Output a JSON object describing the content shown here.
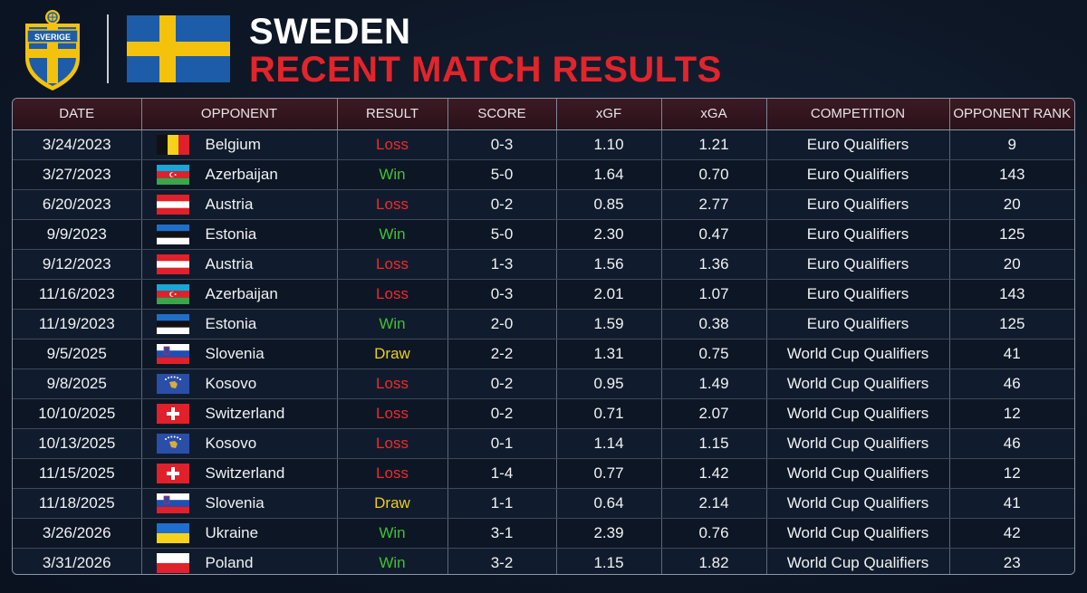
{
  "header": {
    "crest_text": "SVERIGE",
    "title_line1": "SWEDEN",
    "title_line2": "RECENT MATCH RESULTS"
  },
  "colors": {
    "sweden_blue": "#1d5ca8",
    "sweden_yellow": "#f4c20d",
    "title_red": "#e3242b",
    "loss": "#ee2b2b",
    "win": "#3fc22f",
    "draw": "#f0cd1a"
  },
  "chart_data": {
    "type": "table",
    "columns": [
      "DATE",
      "OPPONENT",
      "RESULT",
      "SCORE",
      "xGF",
      "xGA",
      "COMPETITION",
      "OPPONENT RANK"
    ],
    "rows": [
      {
        "date": "3/24/2023",
        "opponent": "Belgium",
        "flag": "belgium",
        "result": "Loss",
        "score": "0-3",
        "xgf": "1.10",
        "xga": "1.21",
        "competition": "Euro Qualifiers",
        "rank": "9"
      },
      {
        "date": "3/27/2023",
        "opponent": "Azerbaijan",
        "flag": "azerbaijan",
        "result": "Win",
        "score": "5-0",
        "xgf": "1.64",
        "xga": "0.70",
        "competition": "Euro Qualifiers",
        "rank": "143"
      },
      {
        "date": "6/20/2023",
        "opponent": "Austria",
        "flag": "austria",
        "result": "Loss",
        "score": "0-2",
        "xgf": "0.85",
        "xga": "2.77",
        "competition": "Euro Qualifiers",
        "rank": "20"
      },
      {
        "date": "9/9/2023",
        "opponent": "Estonia",
        "flag": "estonia",
        "result": "Win",
        "score": "5-0",
        "xgf": "2.30",
        "xga": "0.47",
        "competition": "Euro Qualifiers",
        "rank": "125"
      },
      {
        "date": "9/12/2023",
        "opponent": "Austria",
        "flag": "austria",
        "result": "Loss",
        "score": "1-3",
        "xgf": "1.56",
        "xga": "1.36",
        "competition": "Euro Qualifiers",
        "rank": "20"
      },
      {
        "date": "11/16/2023",
        "opponent": "Azerbaijan",
        "flag": "azerbaijan",
        "result": "Loss",
        "score": "0-3",
        "xgf": "2.01",
        "xga": "1.07",
        "competition": "Euro Qualifiers",
        "rank": "143"
      },
      {
        "date": "11/19/2023",
        "opponent": "Estonia",
        "flag": "estonia",
        "result": "Win",
        "score": "2-0",
        "xgf": "1.59",
        "xga": "0.38",
        "competition": "Euro Qualifiers",
        "rank": "125"
      },
      {
        "date": "9/5/2025",
        "opponent": "Slovenia",
        "flag": "slovenia",
        "result": "Draw",
        "score": "2-2",
        "xgf": "1.31",
        "xga": "0.75",
        "competition": "World Cup Qualifiers",
        "rank": "41"
      },
      {
        "date": "9/8/2025",
        "opponent": "Kosovo",
        "flag": "kosovo",
        "result": "Loss",
        "score": "0-2",
        "xgf": "0.95",
        "xga": "1.49",
        "competition": "World Cup Qualifiers",
        "rank": "46"
      },
      {
        "date": "10/10/2025",
        "opponent": "Switzerland",
        "flag": "switzerland",
        "result": "Loss",
        "score": "0-2",
        "xgf": "0.71",
        "xga": "2.07",
        "competition": "World Cup Qualifiers",
        "rank": "12"
      },
      {
        "date": "10/13/2025",
        "opponent": "Kosovo",
        "flag": "kosovo",
        "result": "Loss",
        "score": "0-1",
        "xgf": "1.14",
        "xga": "1.15",
        "competition": "World Cup Qualifiers",
        "rank": "46"
      },
      {
        "date": "11/15/2025",
        "opponent": "Switzerland",
        "flag": "switzerland",
        "result": "Loss",
        "score": "1-4",
        "xgf": "0.77",
        "xga": "1.42",
        "competition": "World Cup Qualifiers",
        "rank": "12"
      },
      {
        "date": "11/18/2025",
        "opponent": "Slovenia",
        "flag": "slovenia",
        "result": "Draw",
        "score": "1-1",
        "xgf": "0.64",
        "xga": "2.14",
        "competition": "World Cup Qualifiers",
        "rank": "41"
      },
      {
        "date": "3/26/2026",
        "opponent": "Ukraine",
        "flag": "ukraine",
        "result": "Win",
        "score": "3-1",
        "xgf": "2.39",
        "xga": "0.76",
        "competition": "World Cup Qualifiers",
        "rank": "42"
      },
      {
        "date": "3/31/2026",
        "opponent": "Poland",
        "flag": "poland",
        "result": "Win",
        "score": "3-2",
        "xgf": "1.15",
        "xga": "1.82",
        "competition": "World Cup Qualifiers",
        "rank": "23"
      }
    ]
  }
}
